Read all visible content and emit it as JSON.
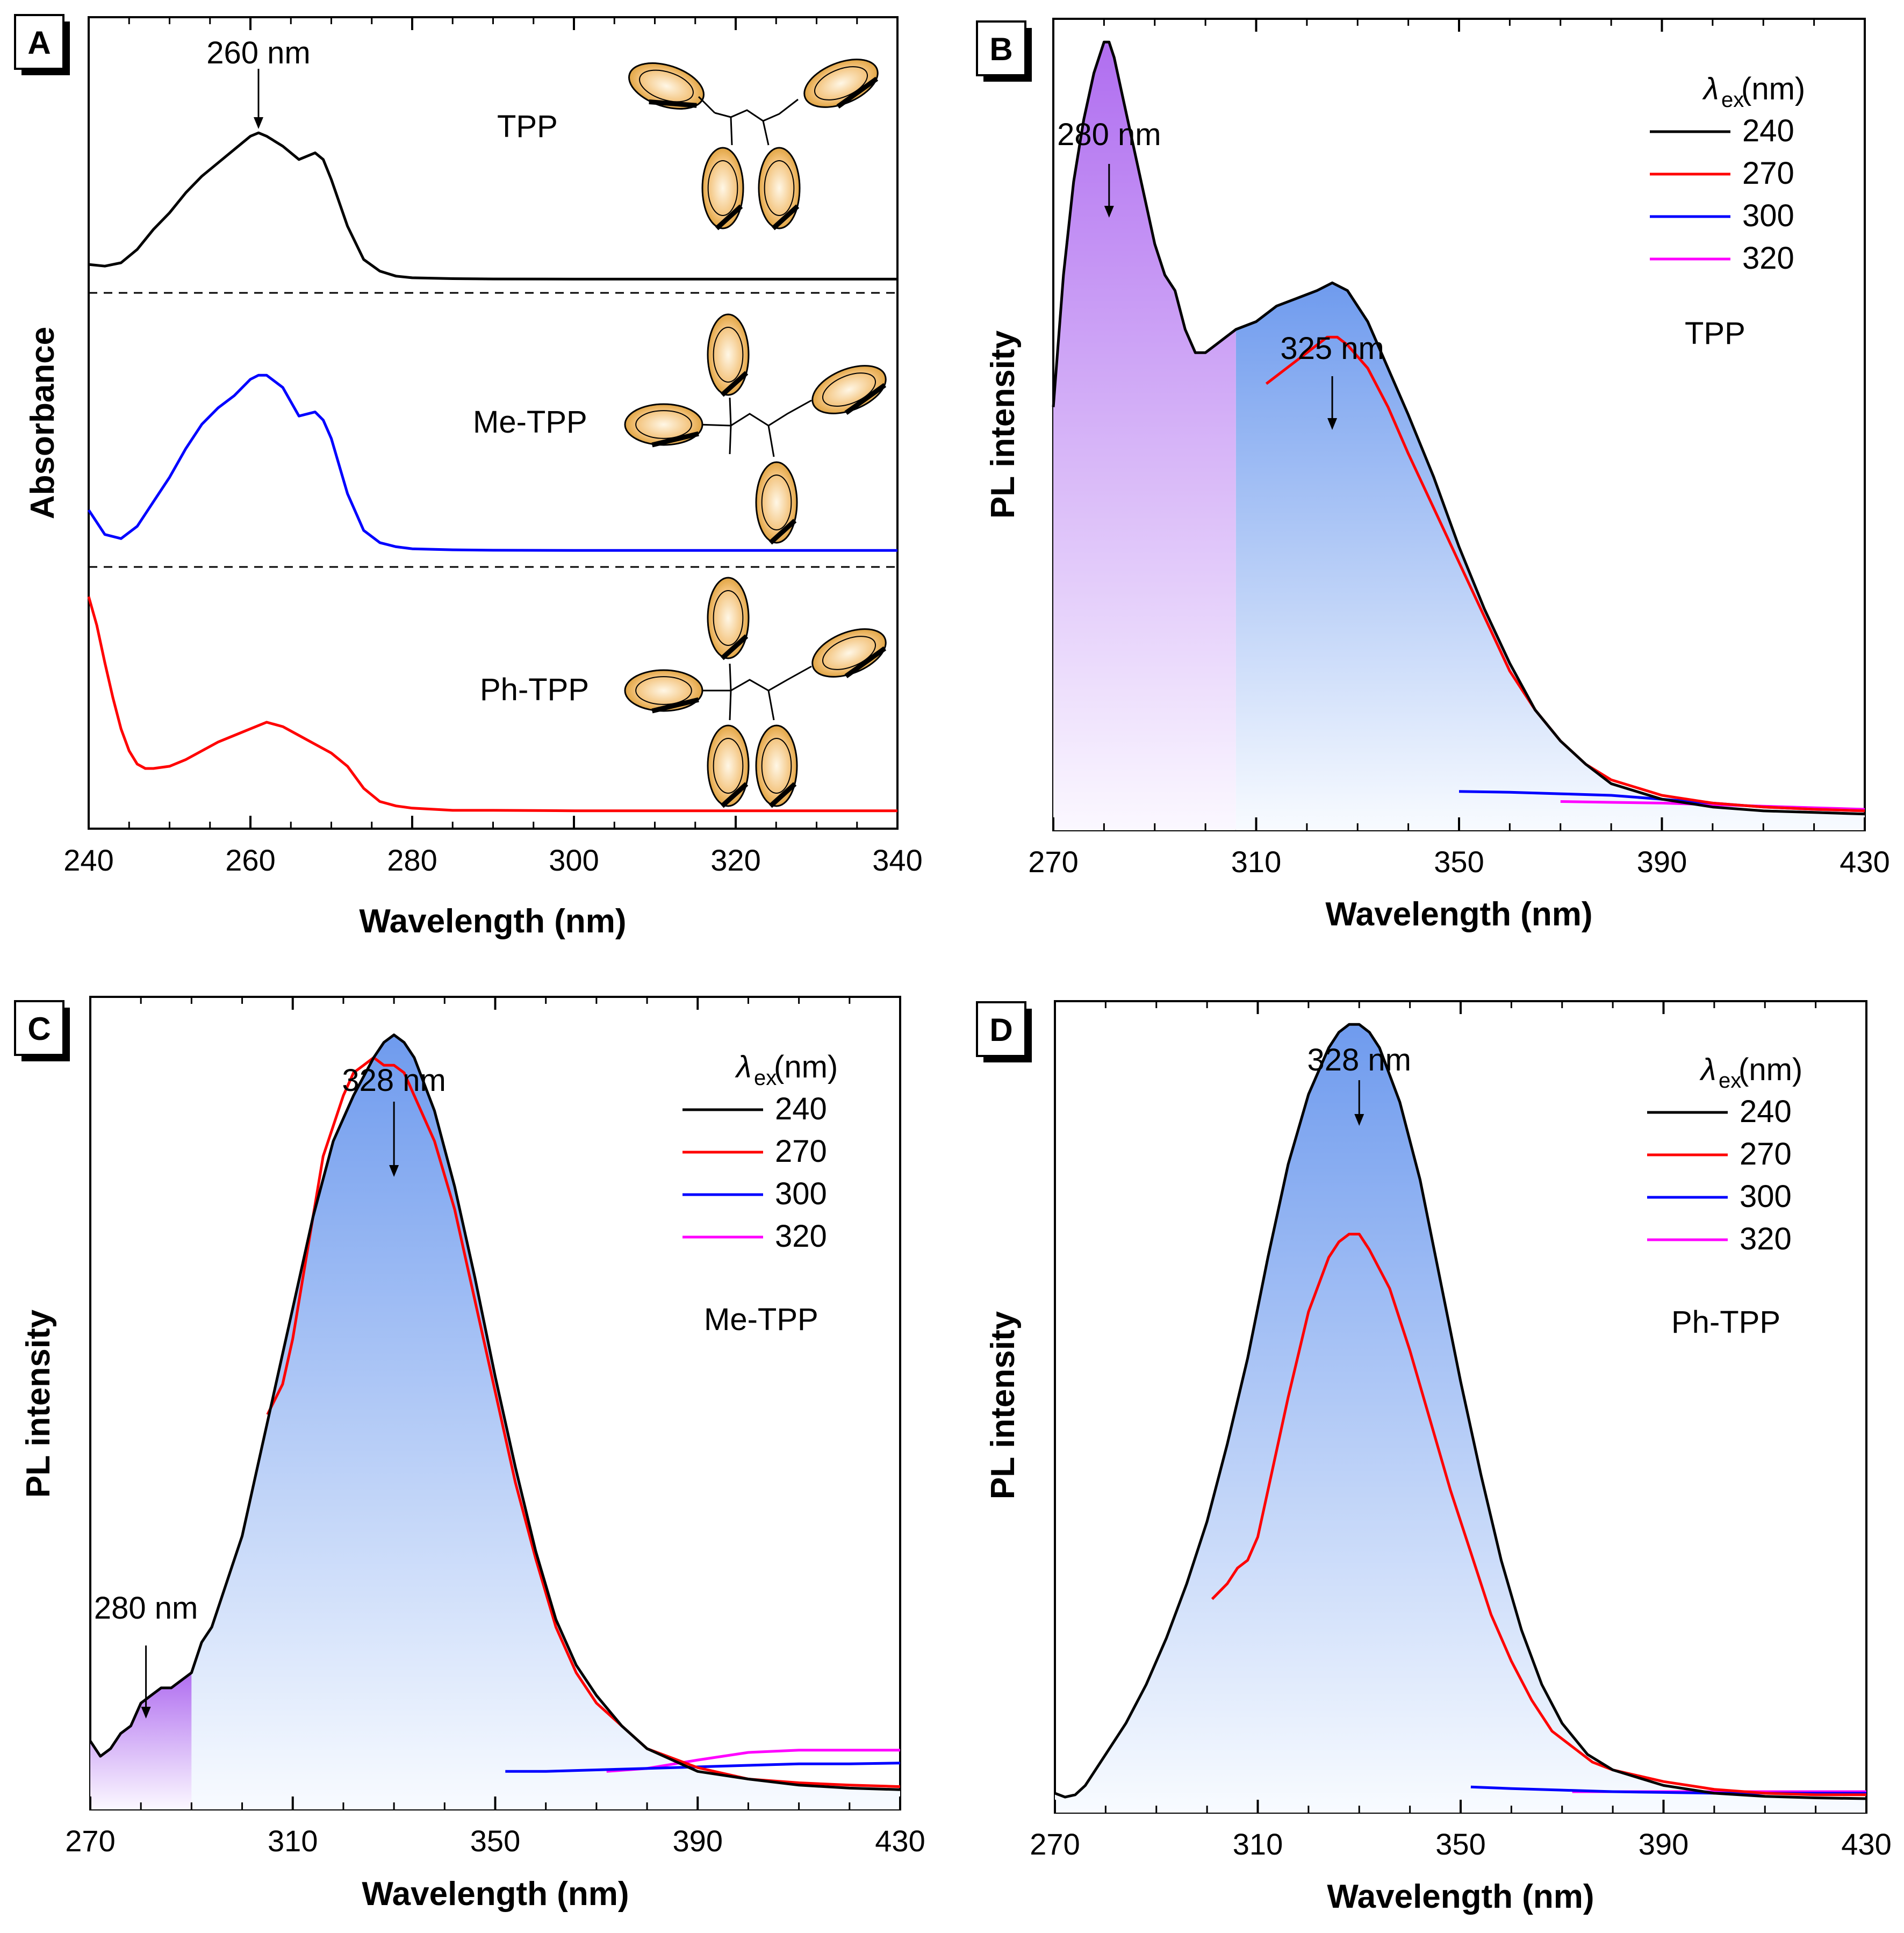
{
  "chart_data": [
    {
      "panel": "A",
      "type": "line",
      "xlabel": "Wavelength (nm)",
      "ylabel": "Absorbance",
      "xlim": [
        240,
        340
      ],
      "xticks": [
        240,
        260,
        280,
        300,
        320,
        340
      ],
      "annotations": [
        {
          "text": "260 nm",
          "x": 260
        }
      ],
      "series": [
        {
          "name": "TPP",
          "color": "#000000",
          "x": [
            240,
            242,
            244,
            246,
            248,
            250,
            252,
            254,
            256,
            258,
            260,
            261,
            262,
            264,
            266,
            268,
            269,
            270,
            272,
            274,
            276,
            278,
            280,
            285,
            290,
            300,
            310,
            320,
            330,
            340
          ],
          "y": [
            0.09,
            0.08,
            0.1,
            0.18,
            0.3,
            0.4,
            0.52,
            0.62,
            0.7,
            0.78,
            0.86,
            0.88,
            0.86,
            0.8,
            0.72,
            0.76,
            0.72,
            0.6,
            0.32,
            0.12,
            0.05,
            0.02,
            0.01,
            0.005,
            0.003,
            0.002,
            0.002,
            0.002,
            0.002,
            0.002
          ]
        },
        {
          "name": "Me-TPP",
          "color": "#0000ff",
          "x": [
            240,
            242,
            244,
            246,
            248,
            250,
            252,
            254,
            256,
            258,
            260,
            261,
            262,
            264,
            266,
            268,
            269,
            270,
            272,
            274,
            276,
            278,
            280,
            285,
            290,
            300,
            310,
            320,
            330,
            340
          ],
          "y": [
            0.2,
            0.08,
            0.06,
            0.12,
            0.24,
            0.36,
            0.5,
            0.62,
            0.7,
            0.76,
            0.84,
            0.86,
            0.86,
            0.8,
            0.66,
            0.68,
            0.64,
            0.55,
            0.28,
            0.1,
            0.04,
            0.02,
            0.01,
            0.005,
            0.003,
            0.002,
            0.002,
            0.002,
            0.002,
            0.002
          ]
        },
        {
          "name": "Ph-TPP",
          "color": "#ff0000",
          "x": [
            240,
            241,
            242,
            243,
            244,
            245,
            246,
            247,
            248,
            250,
            252,
            254,
            256,
            258,
            260,
            262,
            264,
            266,
            268,
            270,
            272,
            274,
            276,
            278,
            280,
            285,
            290,
            300,
            310,
            320,
            330,
            340
          ],
          "y": [
            0.98,
            0.85,
            0.68,
            0.52,
            0.38,
            0.28,
            0.22,
            0.2,
            0.2,
            0.21,
            0.24,
            0.28,
            0.32,
            0.35,
            0.38,
            0.41,
            0.39,
            0.35,
            0.31,
            0.27,
            0.21,
            0.11,
            0.05,
            0.03,
            0.02,
            0.01,
            0.01,
            0.008,
            0.008,
            0.008,
            0.008,
            0.008
          ]
        }
      ]
    },
    {
      "panel": "B",
      "type": "area",
      "xlabel": "Wavelength (nm)",
      "ylabel": "PL intensity",
      "xlim": [
        270,
        430
      ],
      "xticks": [
        270,
        310,
        350,
        390,
        430
      ],
      "sample": "TPP",
      "legend_title_main": "λ",
      "legend_title_sub": "ex",
      "legend_title_unit": " (nm)",
      "legend": [
        "240",
        "270",
        "300",
        "320"
      ],
      "annotations": [
        {
          "text": "280 nm",
          "x": 281
        },
        {
          "text": "325 nm",
          "x": 325
        }
      ],
      "series": [
        {
          "name": "240",
          "color": "#000000",
          "x": [
            270,
            272,
            274,
            276,
            278,
            280,
            281,
            282,
            284,
            286,
            288,
            290,
            292,
            294,
            296,
            298,
            300,
            302,
            304,
            306,
            310,
            314,
            318,
            322,
            325,
            328,
            332,
            336,
            340,
            345,
            350,
            355,
            360,
            365,
            370,
            375,
            380,
            390,
            400,
            410,
            420,
            430
          ],
          "y": [
            0.53,
            0.7,
            0.82,
            0.9,
            0.96,
            1.0,
            1.0,
            0.98,
            0.92,
            0.86,
            0.8,
            0.74,
            0.7,
            0.68,
            0.63,
            0.6,
            0.6,
            0.61,
            0.62,
            0.63,
            0.64,
            0.66,
            0.67,
            0.68,
            0.69,
            0.68,
            0.64,
            0.58,
            0.52,
            0.44,
            0.35,
            0.27,
            0.2,
            0.14,
            0.1,
            0.07,
            0.045,
            0.025,
            0.015,
            0.01,
            0.008,
            0.006
          ]
        },
        {
          "name": "270",
          "color": "#ff0000",
          "x": [
            312,
            316,
            320,
            324,
            326,
            328,
            332,
            336,
            340,
            345,
            350,
            355,
            360,
            365,
            370,
            375,
            380,
            390,
            400,
            410,
            420,
            430
          ],
          "y": [
            0.56,
            0.58,
            0.6,
            0.62,
            0.62,
            0.61,
            0.58,
            0.53,
            0.47,
            0.4,
            0.33,
            0.26,
            0.19,
            0.14,
            0.1,
            0.07,
            0.05,
            0.03,
            0.02,
            0.015,
            0.012,
            0.01
          ]
        },
        {
          "name": "300",
          "color": "#0000ff",
          "x": [
            350,
            360,
            370,
            380,
            390,
            400,
            410,
            420,
            430
          ],
          "y": [
            0.035,
            0.034,
            0.032,
            0.03,
            0.025,
            0.02,
            0.015,
            0.012,
            0.01
          ]
        },
        {
          "name": "320",
          "color": "#ff00ff",
          "x": [
            370,
            380,
            390,
            400,
            410,
            420,
            430
          ],
          "y": [
            0.022,
            0.021,
            0.02,
            0.018,
            0.016,
            0.014,
            0.012
          ]
        }
      ]
    },
    {
      "panel": "C",
      "type": "area",
      "xlabel": "Wavelength (nm)",
      "ylabel": "PL intensity",
      "xlim": [
        270,
        430
      ],
      "xticks": [
        270,
        310,
        350,
        390,
        430
      ],
      "sample": "Me-TPP",
      "legend_title_main": "λ",
      "legend_title_sub": "ex",
      "legend_title_unit": " (nm)",
      "legend": [
        "240",
        "270",
        "300",
        "320"
      ],
      "annotations": [
        {
          "text": "328 nm",
          "x": 330
        },
        {
          "text": "280 nm",
          "x": 281
        }
      ],
      "series": [
        {
          "name": "240",
          "color": "#000000",
          "x": [
            270,
            272,
            274,
            276,
            278,
            280,
            282,
            284,
            286,
            288,
            290,
            292,
            294,
            296,
            298,
            300,
            302,
            304,
            306,
            308,
            310,
            314,
            318,
            322,
            326,
            328,
            330,
            332,
            334,
            338,
            342,
            346,
            350,
            354,
            358,
            362,
            366,
            370,
            375,
            380,
            390,
            400,
            410,
            420,
            430
          ],
          "y": [
            0.07,
            0.05,
            0.06,
            0.08,
            0.09,
            0.12,
            0.13,
            0.14,
            0.14,
            0.15,
            0.16,
            0.2,
            0.22,
            0.26,
            0.3,
            0.34,
            0.4,
            0.46,
            0.52,
            0.58,
            0.64,
            0.76,
            0.86,
            0.92,
            0.97,
            0.99,
            1.0,
            0.99,
            0.97,
            0.9,
            0.8,
            0.68,
            0.55,
            0.43,
            0.32,
            0.23,
            0.17,
            0.13,
            0.09,
            0.06,
            0.03,
            0.02,
            0.012,
            0.008,
            0.006
          ]
        },
        {
          "name": "270",
          "color": "#ff0000",
          "x": [
            305,
            308,
            310,
            312,
            314,
            316,
            318,
            320,
            322,
            324,
            326,
            328,
            330,
            332,
            334,
            338,
            342,
            346,
            350,
            354,
            358,
            362,
            366,
            370,
            375,
            380,
            390,
            400,
            410,
            420,
            430
          ],
          "y": [
            0.5,
            0.54,
            0.6,
            0.68,
            0.76,
            0.84,
            0.88,
            0.92,
            0.95,
            0.96,
            0.97,
            0.96,
            0.96,
            0.95,
            0.92,
            0.86,
            0.77,
            0.65,
            0.53,
            0.41,
            0.31,
            0.22,
            0.16,
            0.12,
            0.09,
            0.06,
            0.035,
            0.02,
            0.015,
            0.012,
            0.01
          ]
        },
        {
          "name": "300",
          "color": "#0000ff",
          "x": [
            352,
            360,
            370,
            380,
            390,
            400,
            410,
            420,
            430
          ],
          "y": [
            0.03,
            0.03,
            0.032,
            0.034,
            0.036,
            0.038,
            0.04,
            0.04,
            0.041
          ]
        },
        {
          "name": "320",
          "color": "#ff00ff",
          "x": [
            372,
            380,
            390,
            400,
            410,
            420,
            430
          ],
          "y": [
            0.03,
            0.034,
            0.045,
            0.055,
            0.058,
            0.058,
            0.058
          ]
        }
      ]
    },
    {
      "panel": "D",
      "type": "area",
      "xlabel": "Wavelength (nm)",
      "ylabel": "PL intensity",
      "xlim": [
        270,
        430
      ],
      "xticks": [
        270,
        310,
        350,
        390,
        430
      ],
      "sample": "Ph-TPP",
      "legend_title_main": "λ",
      "legend_title_sub": "ex",
      "legend_title_unit": " (nm)",
      "legend": [
        "240",
        "270",
        "300",
        "320"
      ],
      "annotations": [
        {
          "text": "328 nm",
          "x": 330
        }
      ],
      "series": [
        {
          "name": "240",
          "color": "#000000",
          "x": [
            270,
            272,
            274,
            276,
            278,
            280,
            284,
            288,
            292,
            296,
            300,
            304,
            308,
            312,
            316,
            320,
            324,
            326,
            328,
            330,
            332,
            334,
            338,
            342,
            346,
            350,
            354,
            358,
            362,
            366,
            370,
            375,
            380,
            390,
            400,
            410,
            420,
            430
          ],
          "y": [
            0.01,
            0.005,
            0.008,
            0.02,
            0.04,
            0.06,
            0.1,
            0.15,
            0.21,
            0.28,
            0.36,
            0.46,
            0.57,
            0.7,
            0.82,
            0.91,
            0.97,
            0.99,
            1.0,
            1.0,
            0.99,
            0.97,
            0.9,
            0.8,
            0.67,
            0.54,
            0.42,
            0.31,
            0.22,
            0.15,
            0.1,
            0.06,
            0.04,
            0.02,
            0.01,
            0.006,
            0.004,
            0.003
          ]
        },
        {
          "name": "270",
          "color": "#ff0000",
          "x": [
            301,
            304,
            306,
            308,
            310,
            312,
            316,
            320,
            324,
            326,
            328,
            330,
            332,
            336,
            340,
            344,
            348,
            352,
            356,
            360,
            364,
            368,
            372,
            376,
            380,
            390,
            400,
            410,
            420,
            430
          ],
          "y": [
            0.26,
            0.28,
            0.3,
            0.31,
            0.34,
            0.4,
            0.52,
            0.63,
            0.7,
            0.72,
            0.73,
            0.73,
            0.71,
            0.66,
            0.58,
            0.49,
            0.4,
            0.32,
            0.24,
            0.18,
            0.13,
            0.09,
            0.07,
            0.05,
            0.04,
            0.025,
            0.015,
            0.01,
            0.008,
            0.008
          ]
        },
        {
          "name": "300",
          "color": "#0000ff",
          "x": [
            352,
            360,
            370,
            380,
            390,
            400,
            410,
            420,
            430
          ],
          "y": [
            0.018,
            0.016,
            0.014,
            0.012,
            0.011,
            0.01,
            0.01,
            0.01,
            0.01
          ]
        },
        {
          "name": "320",
          "color": "#ff00ff",
          "x": [
            372,
            380,
            390,
            400,
            410,
            420,
            430
          ],
          "y": [
            0.012,
            0.012,
            0.012,
            0.012,
            0.012,
            0.012,
            0.012
          ]
        }
      ]
    }
  ]
}
